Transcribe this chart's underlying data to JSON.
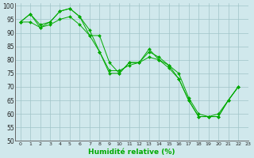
{
  "title": "",
  "xlabel": "Humidité relative (%)",
  "ylabel": "",
  "background_color": "#d0e8ec",
  "grid_color": "#a0c4c8",
  "line_color": "#00aa00",
  "xlim": [
    -0.5,
    23
  ],
  "ylim": [
    50,
    101
  ],
  "yticks": [
    50,
    55,
    60,
    65,
    70,
    75,
    80,
    85,
    90,
    95,
    100
  ],
  "xticks": [
    0,
    1,
    2,
    3,
    4,
    5,
    6,
    7,
    8,
    9,
    10,
    11,
    12,
    13,
    14,
    15,
    16,
    17,
    18,
    19,
    20,
    21,
    22,
    23
  ],
  "series1": [
    94,
    97,
    92,
    94,
    98,
    99,
    96,
    89,
    89,
    79,
    75,
    79,
    79,
    83,
    81,
    78,
    75,
    66,
    60,
    59,
    60,
    65,
    70
  ],
  "series2": [
    94,
    97,
    93,
    94,
    98,
    99,
    96,
    91,
    83,
    75,
    75,
    79,
    79,
    84,
    80,
    78,
    73,
    65,
    59,
    59,
    59,
    65,
    70
  ],
  "series3": [
    94,
    94,
    92,
    93,
    95,
    96,
    93,
    89,
    83,
    76,
    76,
    78,
    79,
    81,
    80,
    77,
    73,
    65,
    59,
    59,
    59,
    65,
    70
  ]
}
